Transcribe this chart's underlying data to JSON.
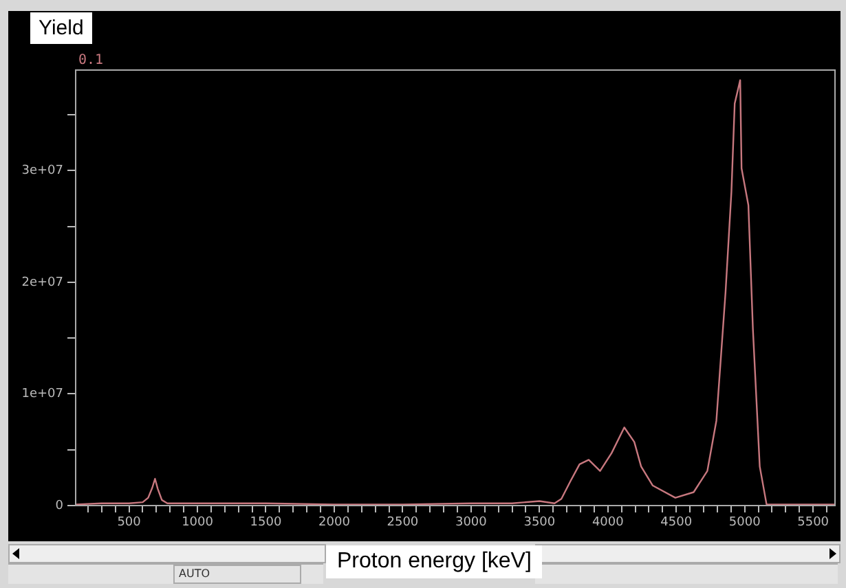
{
  "chart_data": {
    "type": "line",
    "xlabel": "Proton energy [keV]",
    "ylabel": "Yield",
    "annotations": [
      "0.1",
      "AUTO"
    ],
    "x": [
      110,
      300,
      500,
      600,
      640,
      670,
      690,
      710,
      740,
      780,
      900,
      1200,
      1500,
      2000,
      2500,
      3000,
      3300,
      3500,
      3610,
      3660,
      3727,
      3793,
      3860,
      3943,
      4027,
      4120,
      4193,
      4243,
      4327,
      4493,
      4627,
      4727,
      4793,
      4860,
      4903,
      4927,
      4967,
      4977,
      5027,
      5060,
      5110,
      5160,
      5300,
      5500,
      5660
    ],
    "series": [
      {
        "color": "#c8787f",
        "values": [
          100000,
          200000,
          200000,
          300000,
          700000,
          1600000,
          2400000,
          1500000,
          500000,
          200000,
          200000,
          200000,
          200000,
          100000,
          100000,
          200000,
          200000,
          400000,
          200000,
          600000,
          2200000,
          3700000,
          4100000,
          3100000,
          4700000,
          7000000,
          5700000,
          3500000,
          1800000,
          700000,
          1200000,
          3100000,
          7600000,
          19100000,
          28100000,
          36000000,
          38100000,
          30200000,
          26900000,
          15800000,
          3500000,
          100000,
          100000,
          100000,
          100000
        ]
      }
    ],
    "xlim": [
      110,
      5660
    ],
    "ylim": [
      0,
      39000000
    ],
    "xticks": [
      {
        "value": 200,
        "label": null
      },
      {
        "value": 300,
        "label": null
      },
      {
        "value": 400,
        "label": null
      },
      500,
      {
        "value": 600,
        "label": null
      },
      {
        "value": 700,
        "label": null
      },
      {
        "value": 800,
        "label": null
      },
      {
        "value": 900,
        "label": null
      },
      1000,
      {
        "value": 1100,
        "label": null
      },
      {
        "value": 1200,
        "label": null
      },
      {
        "value": 1300,
        "label": null
      },
      {
        "value": 1400,
        "label": null
      },
      1500,
      {
        "value": 1600,
        "label": null
      },
      {
        "value": 1700,
        "label": null
      },
      {
        "value": 1800,
        "label": null
      },
      {
        "value": 1900,
        "label": null
      },
      2000,
      {
        "value": 2100,
        "label": null
      },
      {
        "value": 2200,
        "label": null
      },
      {
        "value": 2300,
        "label": null
      },
      {
        "value": 2400,
        "label": null
      },
      2500,
      {
        "value": 2600,
        "label": null
      },
      {
        "value": 2700,
        "label": null
      },
      {
        "value": 2800,
        "label": null
      },
      {
        "value": 2900,
        "label": null
      },
      3000,
      {
        "value": 3100,
        "label": null
      },
      {
        "value": 3200,
        "label": null
      },
      {
        "value": 3300,
        "label": null
      },
      {
        "value": 3400,
        "label": null
      },
      3500,
      {
        "value": 3600,
        "label": null
      },
      {
        "value": 3700,
        "label": null
      },
      {
        "value": 3800,
        "label": null
      },
      {
        "value": 3900,
        "label": null
      },
      4000,
      {
        "value": 4100,
        "label": null
      },
      {
        "value": 4200,
        "label": null
      },
      {
        "value": 4300,
        "label": null
      },
      {
        "value": 4400,
        "label": null
      },
      4500,
      {
        "value": 4600,
        "label": null
      },
      {
        "value": 4700,
        "label": null
      },
      {
        "value": 4800,
        "label": null
      },
      {
        "value": 4900,
        "label": null
      },
      5000,
      {
        "value": 5100,
        "label": null
      },
      {
        "value": 5200,
        "label": null
      },
      {
        "value": 5300,
        "label": null
      },
      {
        "value": 5400,
        "label": null
      },
      5500,
      {
        "value": 5600,
        "label": null
      }
    ],
    "yticks": [
      0,
      {
        "value": 5000000,
        "label": null
      },
      {
        "value": 10000000,
        "label": "1e+07"
      },
      {
        "value": 15000000,
        "label": null
      },
      {
        "value": 20000000,
        "label": "2e+07"
      },
      {
        "value": 25000000,
        "label": null
      },
      {
        "value": 30000000,
        "label": "3e+07"
      },
      {
        "value": 35000000,
        "label": null
      }
    ],
    "grid": false,
    "legend": false,
    "marker": "none",
    "line_style": "solid"
  }
}
